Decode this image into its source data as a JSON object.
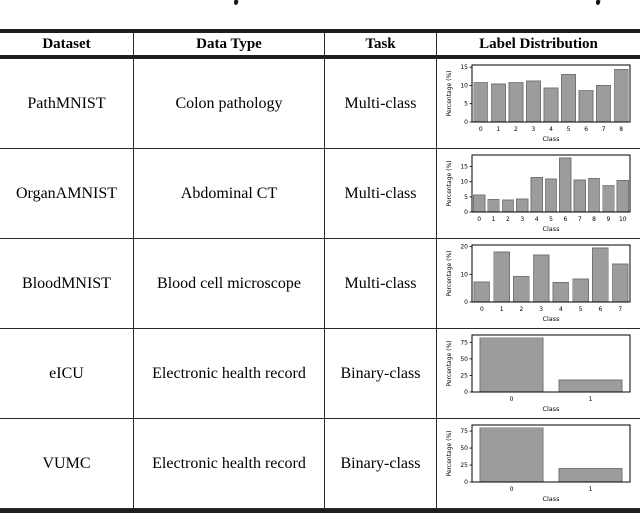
{
  "table": {
    "headers": [
      {
        "label": "Dataset"
      },
      {
        "label": "Data Type"
      },
      {
        "label": "Task"
      },
      {
        "label": "Label Distribution"
      }
    ],
    "rows": [
      {
        "dataset": "PathMNIST",
        "data_type": "Colon pathology",
        "task": "Multi-class"
      },
      {
        "dataset": "OrganAMNIST",
        "data_type": "Abdominal CT",
        "task": "Multi-class"
      },
      {
        "dataset": "BloodMNIST",
        "data_type": "Blood cell microscope",
        "task": "Multi-class"
      },
      {
        "dataset": "eICU",
        "data_type": "Electronic health record",
        "task": "Binary-class"
      },
      {
        "dataset": "VUMC",
        "data_type": "Electronic health record",
        "task": "Binary-class"
      }
    ]
  },
  "chart_style": {
    "bar_color": "#9c9c9c",
    "bar_edge_color": "#757575",
    "spine_color": "#000000",
    "text_color": "#000000"
  },
  "chart_data": [
    {
      "type": "bar",
      "dataset": "PathMNIST",
      "categories": [
        "0",
        "1",
        "2",
        "3",
        "4",
        "5",
        "6",
        "7",
        "8"
      ],
      "values": [
        10.9,
        10.4,
        10.9,
        11.2,
        9.3,
        13.0,
        8.7,
        10.0,
        14.4
      ],
      "title": "",
      "xlabel": "Class",
      "ylabel": "Percentage (%)",
      "yticks": [
        0,
        5,
        10,
        15
      ],
      "ylim": [
        0,
        15.6
      ],
      "grid": false,
      "legend": "none"
    },
    {
      "type": "bar",
      "dataset": "OrganAMNIST",
      "categories": [
        "0",
        "1",
        "2",
        "3",
        "4",
        "5",
        "6",
        "7",
        "8",
        "9",
        "10"
      ],
      "values": [
        5.6,
        4.1,
        4.0,
        4.3,
        11.4,
        10.9,
        17.8,
        10.6,
        11.0,
        8.8,
        10.4
      ],
      "title": "",
      "xlabel": "Class",
      "ylabel": "Percentage (%)",
      "yticks": [
        0,
        5,
        10,
        15
      ],
      "ylim": [
        0,
        18.8
      ],
      "grid": false,
      "legend": "none"
    },
    {
      "type": "bar",
      "dataset": "BloodMNIST",
      "categories": [
        "0",
        "1",
        "2",
        "3",
        "4",
        "5",
        "6",
        "7"
      ],
      "values": [
        7.2,
        18.1,
        9.2,
        17.0,
        7.1,
        8.3,
        19.5,
        13.7
      ],
      "title": "",
      "xlabel": "Class",
      "ylabel": "Percentage (%)",
      "yticks": [
        0,
        10,
        20
      ],
      "ylim": [
        0,
        20.6
      ],
      "grid": false,
      "legend": "none"
    },
    {
      "type": "bar",
      "dataset": "eICU",
      "categories": [
        "0",
        "1"
      ],
      "values": [
        82,
        18
      ],
      "title": "",
      "xlabel": "Class",
      "ylabel": "Percentage (%)",
      "yticks": [
        0,
        25,
        50,
        75
      ],
      "ylim": [
        0,
        86
      ],
      "grid": false,
      "legend": "none"
    },
    {
      "type": "bar",
      "dataset": "VUMC",
      "categories": [
        "0",
        "1"
      ],
      "values": [
        80,
        20
      ],
      "title": "",
      "xlabel": "Class",
      "ylabel": "Percentage (%)",
      "yticks": [
        0,
        25,
        50,
        75
      ],
      "ylim": [
        0,
        84
      ],
      "grid": false,
      "legend": "none"
    }
  ]
}
